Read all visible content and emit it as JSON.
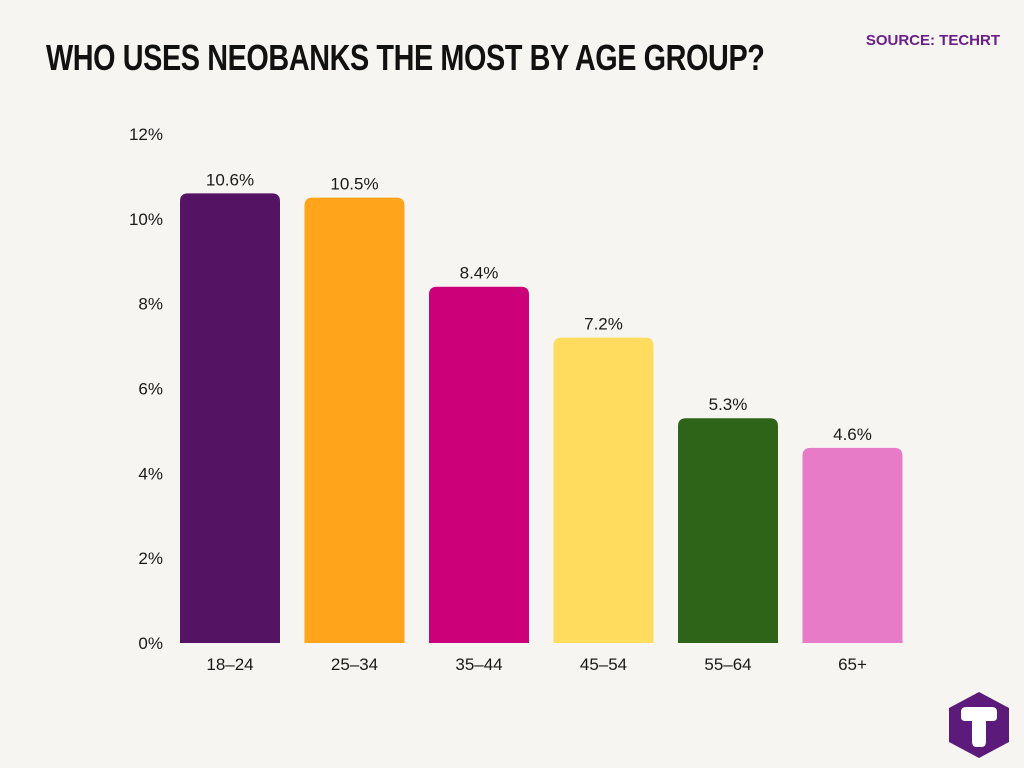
{
  "header": {
    "title": "WHO USES NEOBANKS THE MOST BY AGE GROUP?",
    "source": "SOURCE: TECHRT"
  },
  "colors": {
    "background": "#f6f5f1",
    "title": "#111111",
    "source": "#6a1f8a",
    "axis_text": "#1a1a1a",
    "logo": "#5c1a7a"
  },
  "logo": {
    "icon": "techrt-t-hexagon-icon"
  },
  "chart_data": {
    "type": "bar",
    "title": "WHO USES NEOBANKS THE MOST BY AGE GROUP?",
    "xlabel": "",
    "ylabel": "",
    "categories": [
      "18–24",
      "25–34",
      "35–44",
      "45–54",
      "55–64",
      "65+"
    ],
    "values": [
      10.6,
      10.5,
      8.4,
      7.2,
      5.3,
      4.6
    ],
    "data_labels": [
      "10.6%",
      "10.5%",
      "8.4%",
      "7.2%",
      "5.3%",
      "4.6%"
    ],
    "bar_colors": [
      "#541363",
      "#ffa41b",
      "#cc0078",
      "#ffdc5e",
      "#2e6417",
      "#e87bc8"
    ],
    "ylim": [
      0,
      12
    ],
    "yticks": [
      0,
      2,
      4,
      6,
      8,
      10,
      12
    ],
    "ytick_labels": [
      "0%",
      "2%",
      "4%",
      "6%",
      "8%",
      "10%",
      "12%"
    ],
    "grid": false,
    "legend": "none"
  }
}
